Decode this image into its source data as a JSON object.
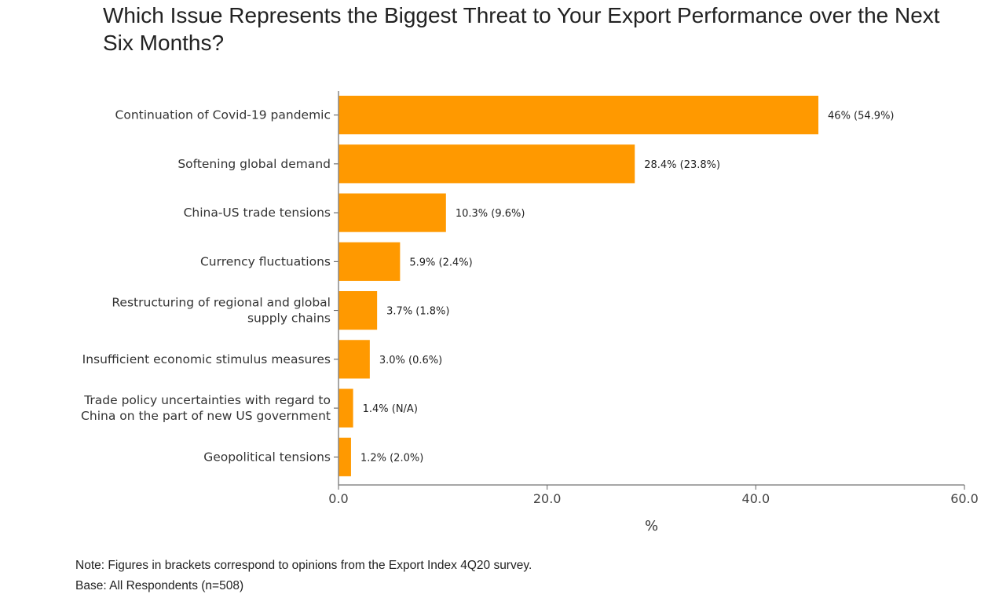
{
  "chart_data": {
    "type": "bar",
    "orientation": "horizontal",
    "title": "Which Issue Represents the Biggest Threat to Your Export Performance over the Next Six Months?",
    "categories": [
      [
        "Continuation of Covid-19 pandemic"
      ],
      [
        "Softening global demand"
      ],
      [
        "China-US trade tensions"
      ],
      [
        "Currency fluctuations"
      ],
      [
        "Restructuring of regional and global",
        "supply chains"
      ],
      [
        "Insufficient economic stimulus measures"
      ],
      [
        "Trade policy uncertainties with regard to",
        "China on the part of new US government"
      ],
      [
        "Geopolitical tensions"
      ]
    ],
    "values": [
      46,
      28.4,
      10.3,
      5.9,
      3.7,
      3.0,
      1.4,
      1.2
    ],
    "data_labels": [
      "46% (54.9%)",
      "28.4% (23.8%)",
      "10.3% (9.6%)",
      "5.9% (2.4%)",
      "3.7% (1.8%)",
      "3.0% (0.6%)",
      "1.4% (N/A)",
      "1.2% (2.0%)"
    ],
    "xlabel": "%",
    "ylabel": "",
    "xlim": [
      0,
      60
    ],
    "xticks": [
      "0.0",
      "20.0",
      "40.0",
      "60.0"
    ],
    "xtick_values": [
      0,
      20,
      40,
      60
    ],
    "bar_color": "#ff9900",
    "grid": false
  },
  "notes": {
    "note": "Note: Figures in brackets correspond to opinions from the Export Index 4Q20 survey.",
    "base": "Base: All Respondents (n=508)"
  }
}
